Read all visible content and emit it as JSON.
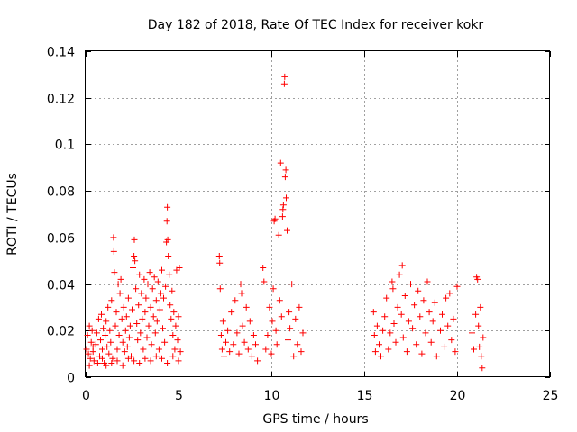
{
  "chart_data": {
    "type": "scatter",
    "title": "Day 182 of 2018, Rate Of TEC Index for receiver kokr",
    "xlabel": "GPS time / hours",
    "ylabel": "ROTI / TECUs",
    "xlim": [
      0,
      25
    ],
    "ylim": [
      0,
      0.14
    ],
    "xticks": [
      0,
      5,
      10,
      15,
      20,
      25
    ],
    "xtick_labels": [
      "0",
      "5",
      "10",
      "15",
      "20",
      "25"
    ],
    "yticks": [
      0,
      0.02,
      0.04,
      0.06,
      0.08,
      0.1,
      0.12,
      0.14
    ],
    "ytick_labels": [
      "0",
      "0.02",
      "0.04",
      "0.06",
      "0.08",
      "0.1",
      "0.12",
      "0.14"
    ],
    "grid": true,
    "marker": "+",
    "color": "#ff0000",
    "series": [
      {
        "name": "ROTI",
        "points": [
          [
            0.05,
            0.012
          ],
          [
            0.1,
            0.018
          ],
          [
            0.15,
            0.01
          ],
          [
            0.2,
            0.022
          ],
          [
            0.25,
            0.008
          ],
          [
            0.3,
            0.015
          ],
          [
            0.35,
            0.02
          ],
          [
            0.4,
            0.011
          ],
          [
            0.45,
            0.007
          ],
          [
            0.55,
            0.014
          ],
          [
            0.6,
            0.019
          ],
          [
            0.7,
            0.025
          ],
          [
            0.75,
            0.009
          ],
          [
            0.8,
            0.016
          ],
          [
            0.85,
            0.027
          ],
          [
            0.9,
            0.012
          ],
          [
            0.95,
            0.021
          ],
          [
            1.0,
            0.006
          ],
          [
            1.05,
            0.018
          ],
          [
            1.1,
            0.024
          ],
          [
            1.15,
            0.013
          ],
          [
            1.2,
            0.03
          ],
          [
            1.25,
            0.01
          ],
          [
            1.3,
            0.02
          ],
          [
            1.35,
            0.015
          ],
          [
            1.4,
            0.033
          ],
          [
            1.45,
            0.008
          ],
          [
            1.5,
            0.06
          ],
          [
            1.52,
            0.054
          ],
          [
            1.55,
            0.045
          ],
          [
            1.6,
            0.022
          ],
          [
            1.65,
            0.028
          ],
          [
            1.7,
            0.012
          ],
          [
            1.75,
            0.04
          ],
          [
            1.8,
            0.018
          ],
          [
            1.85,
            0.036
          ],
          [
            1.9,
            0.042
          ],
          [
            1.95,
            0.025
          ],
          [
            2.0,
            0.015
          ],
          [
            2.05,
            0.03
          ],
          [
            2.1,
            0.011
          ],
          [
            2.15,
            0.02
          ],
          [
            2.2,
            0.026
          ],
          [
            2.25,
            0.013
          ],
          [
            2.3,
            0.034
          ],
          [
            2.35,
            0.017
          ],
          [
            2.4,
            0.022
          ],
          [
            2.45,
            0.009
          ],
          [
            2.5,
            0.029
          ],
          [
            2.55,
            0.047
          ],
          [
            2.6,
            0.052
          ],
          [
            2.62,
            0.059
          ],
          [
            2.65,
            0.05
          ],
          [
            2.7,
            0.038
          ],
          [
            2.75,
            0.023
          ],
          [
            2.8,
            0.016
          ],
          [
            2.85,
            0.031
          ],
          [
            2.9,
            0.044
          ],
          [
            2.95,
            0.019
          ],
          [
            3.0,
            0.036
          ],
          [
            3.05,
            0.025
          ],
          [
            3.1,
            0.012
          ],
          [
            3.15,
            0.042
          ],
          [
            3.2,
            0.028
          ],
          [
            3.25,
            0.034
          ],
          [
            3.3,
            0.017
          ],
          [
            3.35,
            0.04
          ],
          [
            3.4,
            0.022
          ],
          [
            3.45,
            0.045
          ],
          [
            3.5,
            0.03
          ],
          [
            3.55,
            0.014
          ],
          [
            3.6,
            0.038
          ],
          [
            3.65,
            0.026
          ],
          [
            3.7,
            0.043
          ],
          [
            3.75,
            0.019
          ],
          [
            3.8,
            0.033
          ],
          [
            3.85,
            0.024
          ],
          [
            3.9,
            0.041
          ],
          [
            3.95,
            0.012
          ],
          [
            4.0,
            0.029
          ],
          [
            4.05,
            0.036
          ],
          [
            4.1,
            0.046
          ],
          [
            4.15,
            0.021
          ],
          [
            4.2,
            0.034
          ],
          [
            4.25,
            0.015
          ],
          [
            4.3,
            0.039
          ],
          [
            4.35,
            0.058
          ],
          [
            4.38,
            0.067
          ],
          [
            4.4,
            0.073
          ],
          [
            4.42,
            0.059
          ],
          [
            4.45,
            0.052
          ],
          [
            4.5,
            0.044
          ],
          [
            4.55,
            0.031
          ],
          [
            4.6,
            0.025
          ],
          [
            4.65,
            0.037
          ],
          [
            4.7,
            0.018
          ],
          [
            4.75,
            0.028
          ],
          [
            4.8,
            0.012
          ],
          [
            4.85,
            0.022
          ],
          [
            4.9,
            0.046
          ],
          [
            4.95,
            0.016
          ],
          [
            5.0,
            0.026
          ],
          [
            5.05,
            0.047
          ],
          [
            5.1,
            0.011
          ],
          [
            0.2,
            0.005
          ],
          [
            0.4,
            0.013
          ],
          [
            0.65,
            0.006
          ],
          [
            0.9,
            0.008
          ],
          [
            1.1,
            0.005
          ],
          [
            1.4,
            0.006
          ],
          [
            1.7,
            0.007
          ],
          [
            2.0,
            0.005
          ],
          [
            2.3,
            0.008
          ],
          [
            2.6,
            0.007
          ],
          [
            2.9,
            0.006
          ],
          [
            3.2,
            0.008
          ],
          [
            3.5,
            0.007
          ],
          [
            3.8,
            0.009
          ],
          [
            4.1,
            0.008
          ],
          [
            4.4,
            0.006
          ],
          [
            4.7,
            0.009
          ],
          [
            5.0,
            0.007
          ],
          [
            7.2,
            0.052
          ],
          [
            7.22,
            0.049
          ],
          [
            7.25,
            0.038
          ],
          [
            7.3,
            0.018
          ],
          [
            7.35,
            0.012
          ],
          [
            7.4,
            0.024
          ],
          [
            7.45,
            0.009
          ],
          [
            7.55,
            0.015
          ],
          [
            7.65,
            0.02
          ],
          [
            7.75,
            0.011
          ],
          [
            7.85,
            0.028
          ],
          [
            7.95,
            0.014
          ],
          [
            8.05,
            0.033
          ],
          [
            8.15,
            0.019
          ],
          [
            8.25,
            0.01
          ],
          [
            8.35,
            0.04
          ],
          [
            8.4,
            0.036
          ],
          [
            8.45,
            0.022
          ],
          [
            8.55,
            0.015
          ],
          [
            8.65,
            0.03
          ],
          [
            8.75,
            0.012
          ],
          [
            8.85,
            0.024
          ],
          [
            8.95,
            0.009
          ],
          [
            9.05,
            0.018
          ],
          [
            9.15,
            0.014
          ],
          [
            9.25,
            0.007
          ],
          [
            9.55,
            0.047
          ],
          [
            9.6,
            0.041
          ],
          [
            9.7,
            0.012
          ],
          [
            9.8,
            0.018
          ],
          [
            9.9,
            0.03
          ],
          [
            10.0,
            0.01
          ],
          [
            10.05,
            0.024
          ],
          [
            10.1,
            0.038
          ],
          [
            10.15,
            0.067
          ],
          [
            10.2,
            0.068
          ],
          [
            10.25,
            0.02
          ],
          [
            10.3,
            0.014
          ],
          [
            10.4,
            0.061
          ],
          [
            10.45,
            0.033
          ],
          [
            10.5,
            0.092
          ],
          [
            10.55,
            0.026
          ],
          [
            10.6,
            0.069
          ],
          [
            10.62,
            0.072
          ],
          [
            10.65,
            0.074
          ],
          [
            10.7,
            0.126
          ],
          [
            10.72,
            0.129
          ],
          [
            10.75,
            0.086
          ],
          [
            10.78,
            0.089
          ],
          [
            10.8,
            0.077
          ],
          [
            10.85,
            0.063
          ],
          [
            10.9,
            0.016
          ],
          [
            10.95,
            0.028
          ],
          [
            11.0,
            0.021
          ],
          [
            11.1,
            0.04
          ],
          [
            11.2,
            0.009
          ],
          [
            11.3,
            0.025
          ],
          [
            11.4,
            0.014
          ],
          [
            11.5,
            0.03
          ],
          [
            11.6,
            0.011
          ],
          [
            11.7,
            0.019
          ],
          [
            15.5,
            0.028
          ],
          [
            15.55,
            0.018
          ],
          [
            15.6,
            0.011
          ],
          [
            15.7,
            0.022
          ],
          [
            15.8,
            0.014
          ],
          [
            15.9,
            0.009
          ],
          [
            16.0,
            0.02
          ],
          [
            16.1,
            0.026
          ],
          [
            16.2,
            0.034
          ],
          [
            16.3,
            0.012
          ],
          [
            16.4,
            0.019
          ],
          [
            16.5,
            0.041
          ],
          [
            16.55,
            0.038
          ],
          [
            16.6,
            0.023
          ],
          [
            16.7,
            0.015
          ],
          [
            16.8,
            0.03
          ],
          [
            16.9,
            0.044
          ],
          [
            17.0,
            0.027
          ],
          [
            17.05,
            0.048
          ],
          [
            17.1,
            0.017
          ],
          [
            17.2,
            0.035
          ],
          [
            17.3,
            0.011
          ],
          [
            17.4,
            0.024
          ],
          [
            17.5,
            0.04
          ],
          [
            17.6,
            0.021
          ],
          [
            17.7,
            0.031
          ],
          [
            17.8,
            0.014
          ],
          [
            17.9,
            0.037
          ],
          [
            18.0,
            0.026
          ],
          [
            18.1,
            0.01
          ],
          [
            18.2,
            0.033
          ],
          [
            18.3,
            0.019
          ],
          [
            18.4,
            0.041
          ],
          [
            18.5,
            0.028
          ],
          [
            18.6,
            0.015
          ],
          [
            18.7,
            0.024
          ],
          [
            18.8,
            0.032
          ],
          [
            18.9,
            0.009
          ],
          [
            19.1,
            0.02
          ],
          [
            19.2,
            0.027
          ],
          [
            19.3,
            0.013
          ],
          [
            19.4,
            0.034
          ],
          [
            19.5,
            0.022
          ],
          [
            19.6,
            0.036
          ],
          [
            19.7,
            0.016
          ],
          [
            19.8,
            0.025
          ],
          [
            19.9,
            0.011
          ],
          [
            20.0,
            0.039
          ],
          [
            20.8,
            0.019
          ],
          [
            20.9,
            0.012
          ],
          [
            21.0,
            0.027
          ],
          [
            21.05,
            0.043
          ],
          [
            21.1,
            0.042
          ],
          [
            21.15,
            0.022
          ],
          [
            21.2,
            0.013
          ],
          [
            21.25,
            0.03
          ],
          [
            21.3,
            0.009
          ],
          [
            21.35,
            0.004
          ],
          [
            21.4,
            0.017
          ]
        ]
      }
    ]
  }
}
